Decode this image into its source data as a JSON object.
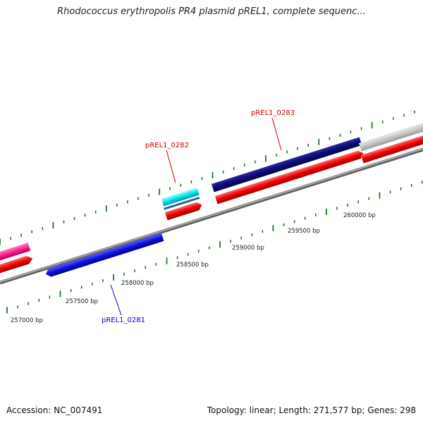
{
  "title": "Rhodococcus erythropolis PR4 plasmid pREL1, complete sequenc...",
  "footer": {
    "accession": "Accession: NC_007491",
    "summary": "Topology: linear; Length: 271,577 bp; Genes: 298"
  },
  "scale_labels": [
    "257000 bp",
    "257500 bp",
    "258000 bp",
    "258500 bp",
    "259000 bp",
    "259500 bp",
    "260000 bp"
  ],
  "genes": [
    {
      "label": "pREL1_0281",
      "color": "#0000ee"
    },
    {
      "label": "pREL1_0282",
      "color": "#cc0000"
    },
    {
      "label": "pREL1_0283",
      "color": "#cc0000"
    }
  ],
  "colors": {
    "backbone": "#808080",
    "tick": "#1a7a1a",
    "cds": "#ee0000",
    "gene_0281": "#1010e0",
    "gene_0282": "#00e5ee",
    "gene_0283": "#0a0a7a",
    "gene_left": "#ff2090",
    "gene_right_track": "#c8c8c8"
  }
}
